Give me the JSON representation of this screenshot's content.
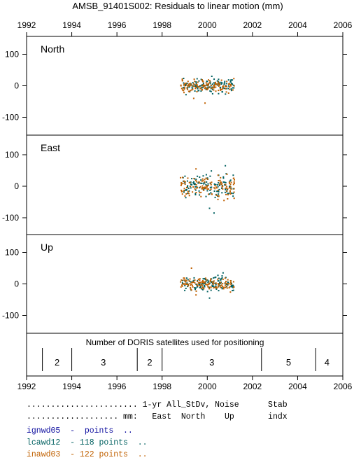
{
  "chart_data": {
    "type": "scatter",
    "title": "AMSB_91401S002: Residuals to linear motion (mm)",
    "x_ticks": [
      "1992",
      "1994",
      "1996",
      "1998",
      "2000",
      "2002",
      "2004",
      "2006"
    ],
    "y_ticks": [
      "100",
      "0",
      "-100"
    ],
    "xlim": [
      1992,
      2006
    ],
    "ylim": [
      -160,
      160
    ],
    "panels": [
      {
        "label": "North",
        "series": [
          {
            "name": "lcawd12",
            "color": "#006060",
            "seed": 11,
            "x_range": [
              1998.9,
              2001.2
            ],
            "y_center": 0,
            "y_spread": 15,
            "outliers": [
              [
                2000.2,
                30
              ],
              [
                2000.5,
                -25
              ]
            ]
          },
          {
            "name": "inawd03",
            "color": "#c06000",
            "seed": 23,
            "x_range": [
              1998.8,
              2001.2
            ],
            "y_center": 0,
            "y_spread": 15,
            "outliers": [
              [
                1999.4,
                -40
              ],
              [
                1999.9,
                -55
              ]
            ]
          }
        ]
      },
      {
        "label": "East",
        "series": [
          {
            "name": "lcawd12",
            "color": "#006060",
            "seed": 37,
            "x_range": [
              1998.9,
              2001.2
            ],
            "y_center": 0,
            "y_spread": 25,
            "outliers": [
              [
                2000.3,
                -85
              ],
              [
                2000.1,
                -70
              ],
              [
                2000.8,
                65
              ]
            ]
          },
          {
            "name": "inawd03",
            "color": "#c06000",
            "seed": 51,
            "x_range": [
              1998.8,
              2001.2
            ],
            "y_center": 0,
            "y_spread": 25,
            "outliers": [
              [
                1999.5,
                55
              ],
              [
                2000.9,
                -40
              ]
            ]
          }
        ]
      },
      {
        "label": "Up",
        "series": [
          {
            "name": "lcawd12",
            "color": "#006060",
            "seed": 71,
            "x_range": [
              1998.9,
              2001.2
            ],
            "y_center": 0,
            "y_spread": 15,
            "outliers": [
              [
                2000.1,
                -45
              ],
              [
                2000.7,
                35
              ]
            ]
          },
          {
            "name": "inawd03",
            "color": "#c06000",
            "seed": 89,
            "x_range": [
              1998.8,
              2001.2
            ],
            "y_center": 0,
            "y_spread": 15,
            "outliers": [
              [
                1999.3,
                50
              ],
              [
                1999.5,
                -35
              ]
            ]
          }
        ]
      }
    ],
    "satellites": {
      "label": "Number of DORIS satellites used for positioning",
      "boundaries": [
        1992.7,
        1994.0,
        1996.9,
        1998.0,
        2002.4,
        2004.8
      ],
      "segments": [
        {
          "x": 1993.35,
          "count": "2"
        },
        {
          "x": 1995.4,
          "count": "3"
        },
        {
          "x": 1997.45,
          "count": "2"
        },
        {
          "x": 2000.2,
          "count": "3"
        },
        {
          "x": 2003.6,
          "count": "5"
        },
        {
          "x": 2005.3,
          "count": "4"
        }
      ]
    }
  },
  "stats": {
    "header1": "....................... 1-yr All_StDv, Noise      Stab",
    "header2": "................... mm:   East  North    Up       indx",
    "rows": [
      {
        "name": "ignwd05",
        "text": "ignwd05  -  points  ..",
        "color": "#1010a0"
      },
      {
        "name": "lcawd12",
        "text": "lcawd12  - 118 points  ..",
        "color": "#006060"
      },
      {
        "name": "inawd03",
        "text": "inawd03  - 122 points  ..",
        "color": "#c06000"
      }
    ]
  }
}
